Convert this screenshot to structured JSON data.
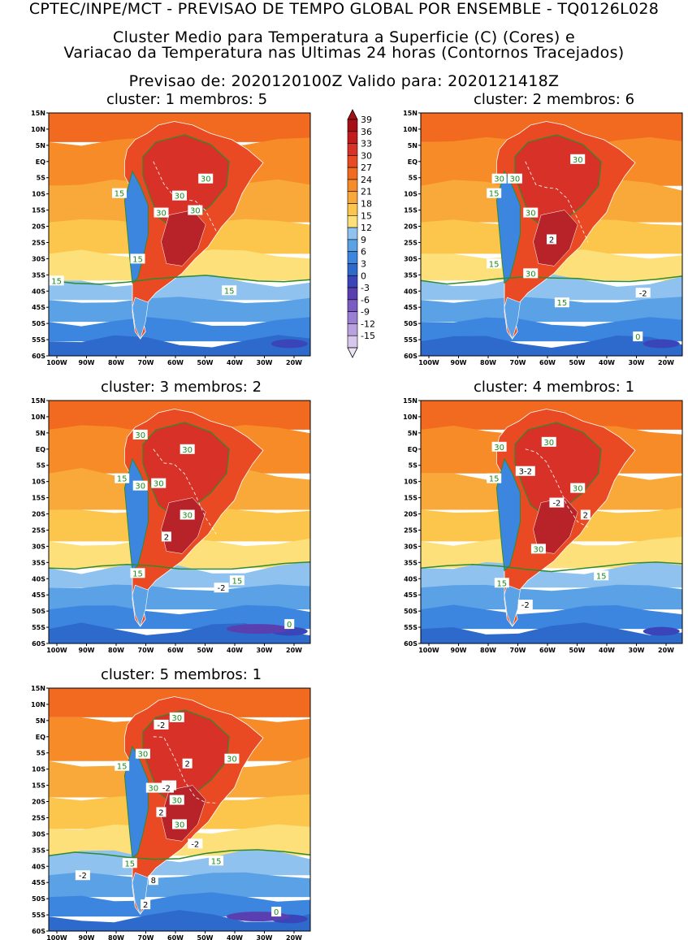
{
  "header": {
    "line1": "CPTEC/INPE/MCT - PREVISAO DE TEMPO GLOBAL POR ENSEMBLE - TQ0126L028",
    "line2": "Cluster Medio para Temperatura a Superficie (C) (Cores) e",
    "line3": "Variacao da Temperatura nas Ultimas 24 horas (Contornos Tracejados)",
    "line4": "Previsao de: 2020120100Z    Valido para: 2020121418Z"
  },
  "axes": {
    "lat_ticks": [
      "15N",
      "10N",
      "5N",
      "EQ",
      "5S",
      "10S",
      "15S",
      "20S",
      "25S",
      "30S",
      "35S",
      "40S",
      "45S",
      "50S",
      "55S",
      "60S"
    ],
    "lon_ticks": [
      "100W",
      "90W",
      "80W",
      "70W",
      "60W",
      "50W",
      "40W",
      "30W",
      "20W"
    ]
  },
  "colorbar": {
    "labels": [
      "39",
      "36",
      "33",
      "30",
      "27",
      "24",
      "21",
      "18",
      "15",
      "12",
      "9",
      "6",
      "3",
      "0",
      "-3",
      "-6",
      "-9",
      "-12",
      "-15"
    ],
    "colors": [
      "#a50f15",
      "#c21b1f",
      "#d83228",
      "#ea4a23",
      "#f26a1f",
      "#f68b27",
      "#f9a83a",
      "#fcc54b",
      "#fde07a",
      "#8fc2ee",
      "#5aa1e6",
      "#3c86e0",
      "#2d6acc",
      "#3945b8",
      "#5a3fb0",
      "#7a5cc4",
      "#9a7fd2",
      "#b9a2de",
      "#d8c7ec"
    ]
  },
  "panels": [
    {
      "title": "cluster: 1   membros: 5",
      "labels": [
        {
          "text": "30",
          "type": "green"
        },
        {
          "text": "30",
          "type": "green"
        },
        {
          "text": "30",
          "type": "green"
        },
        {
          "text": "30",
          "type": "green"
        },
        {
          "text": "15",
          "type": "green"
        },
        {
          "text": "15",
          "type": "green"
        },
        {
          "text": "15",
          "type": "green"
        },
        {
          "text": "15",
          "type": "green"
        }
      ]
    },
    {
      "title": "cluster: 2   membros: 6",
      "labels": [
        {
          "text": "30",
          "type": "green"
        },
        {
          "text": "30",
          "type": "green"
        },
        {
          "text": "30",
          "type": "green"
        },
        {
          "text": "30",
          "type": "green"
        },
        {
          "text": "30",
          "type": "green"
        },
        {
          "text": "15",
          "type": "green"
        },
        {
          "text": "15",
          "type": "green"
        },
        {
          "text": "15",
          "type": "green"
        },
        {
          "text": "2",
          "type": "white"
        },
        {
          "text": "-2",
          "type": "white"
        },
        {
          "text": "0",
          "type": "green"
        }
      ]
    },
    {
      "title": "cluster: 3   membros: 2",
      "labels": [
        {
          "text": "30",
          "type": "green"
        },
        {
          "text": "30",
          "type": "green"
        },
        {
          "text": "30",
          "type": "green"
        },
        {
          "text": "30",
          "type": "green"
        },
        {
          "text": "30",
          "type": "green"
        },
        {
          "text": "15",
          "type": "green"
        },
        {
          "text": "15",
          "type": "green"
        },
        {
          "text": "15",
          "type": "green"
        },
        {
          "text": "2",
          "type": "white"
        },
        {
          "text": "-2",
          "type": "white"
        },
        {
          "text": "0",
          "type": "green"
        }
      ]
    },
    {
      "title": "cluster: 4   membros: 1",
      "labels": [
        {
          "text": "30",
          "type": "green"
        },
        {
          "text": "30",
          "type": "green"
        },
        {
          "text": "3-2",
          "type": "white"
        },
        {
          "text": "30",
          "type": "green"
        },
        {
          "text": "-2",
          "type": "white"
        },
        {
          "text": "2",
          "type": "white"
        },
        {
          "text": "30",
          "type": "green"
        },
        {
          "text": "15",
          "type": "green"
        },
        {
          "text": "15",
          "type": "green"
        },
        {
          "text": "15",
          "type": "green"
        },
        {
          "text": "-2",
          "type": "white"
        }
      ]
    },
    {
      "title": "cluster: 5   membros: 1",
      "labels": [
        {
          "text": "-2",
          "type": "white"
        },
        {
          "text": "30",
          "type": "green"
        },
        {
          "text": "30",
          "type": "green"
        },
        {
          "text": "2",
          "type": "white"
        },
        {
          "text": "30",
          "type": "green"
        },
        {
          "text": "15",
          "type": "green"
        },
        {
          "text": "30",
          "type": "green"
        },
        {
          "text": "-2",
          "type": "white"
        },
        {
          "text": "-2",
          "type": "white"
        },
        {
          "text": "2",
          "type": "white"
        },
        {
          "text": "30",
          "type": "green"
        },
        {
          "text": "30",
          "type": "green"
        },
        {
          "text": "-2",
          "type": "white"
        },
        {
          "text": "15",
          "type": "green"
        },
        {
          "text": "15",
          "type": "green"
        },
        {
          "text": "-2",
          "type": "white"
        },
        {
          "text": "8",
          "type": "white"
        },
        {
          "text": "2",
          "type": "white"
        },
        {
          "text": "0",
          "type": "green"
        }
      ]
    }
  ]
}
